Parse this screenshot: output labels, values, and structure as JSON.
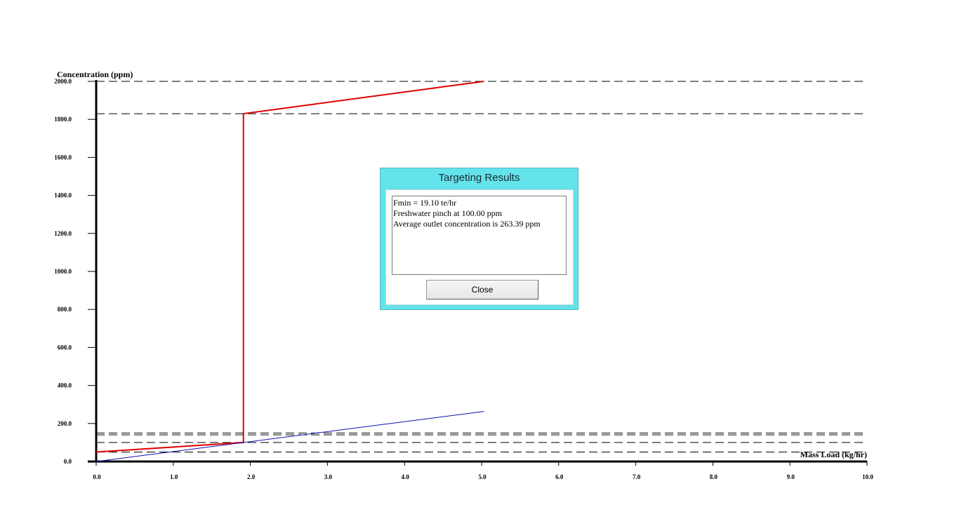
{
  "chart_data": {
    "type": "line",
    "xlabel": "Mass Load (kg/hr)",
    "ylabel": "Concentration (ppm)",
    "xlim": [
      0,
      10
    ],
    "ylim": [
      0,
      2000
    ],
    "x_ticks": [
      "0.0",
      "1.0",
      "2.0",
      "3.0",
      "4.0",
      "5.0",
      "6.0",
      "7.0",
      "8.0",
      "9.0",
      "10.0"
    ],
    "y_ticks": [
      "0.0",
      "200.0",
      "400.0",
      "600.0",
      "800.0",
      "1000.0",
      "1200.0",
      "1400.0",
      "1600.0",
      "1800.0",
      "2000.0"
    ],
    "reference_lines_y": [
      50,
      100,
      140,
      150,
      1830,
      2000
    ],
    "grid": false,
    "series": [
      {
        "color": "#e00000",
        "points": [
          [
            0,
            50
          ],
          [
            1.91,
            100
          ],
          [
            1.91,
            1830
          ],
          [
            5.03,
            2000
          ]
        ]
      },
      {
        "color": "#1010b0",
        "points": [
          [
            0,
            0
          ],
          [
            5.03,
            263.39
          ]
        ]
      }
    ]
  },
  "dialog": {
    "title": "Targeting Results",
    "results": [
      "Fmin = 19.10 te/hr",
      "Freshwater pinch at 100.00 ppm",
      "Average outlet concentration is 263.39 ppm"
    ],
    "close_label": "Close"
  },
  "colors": {
    "dialog_frame": "#63e3ea",
    "composite_curve": "#e00000",
    "water_supply_line": "#1010b0"
  }
}
